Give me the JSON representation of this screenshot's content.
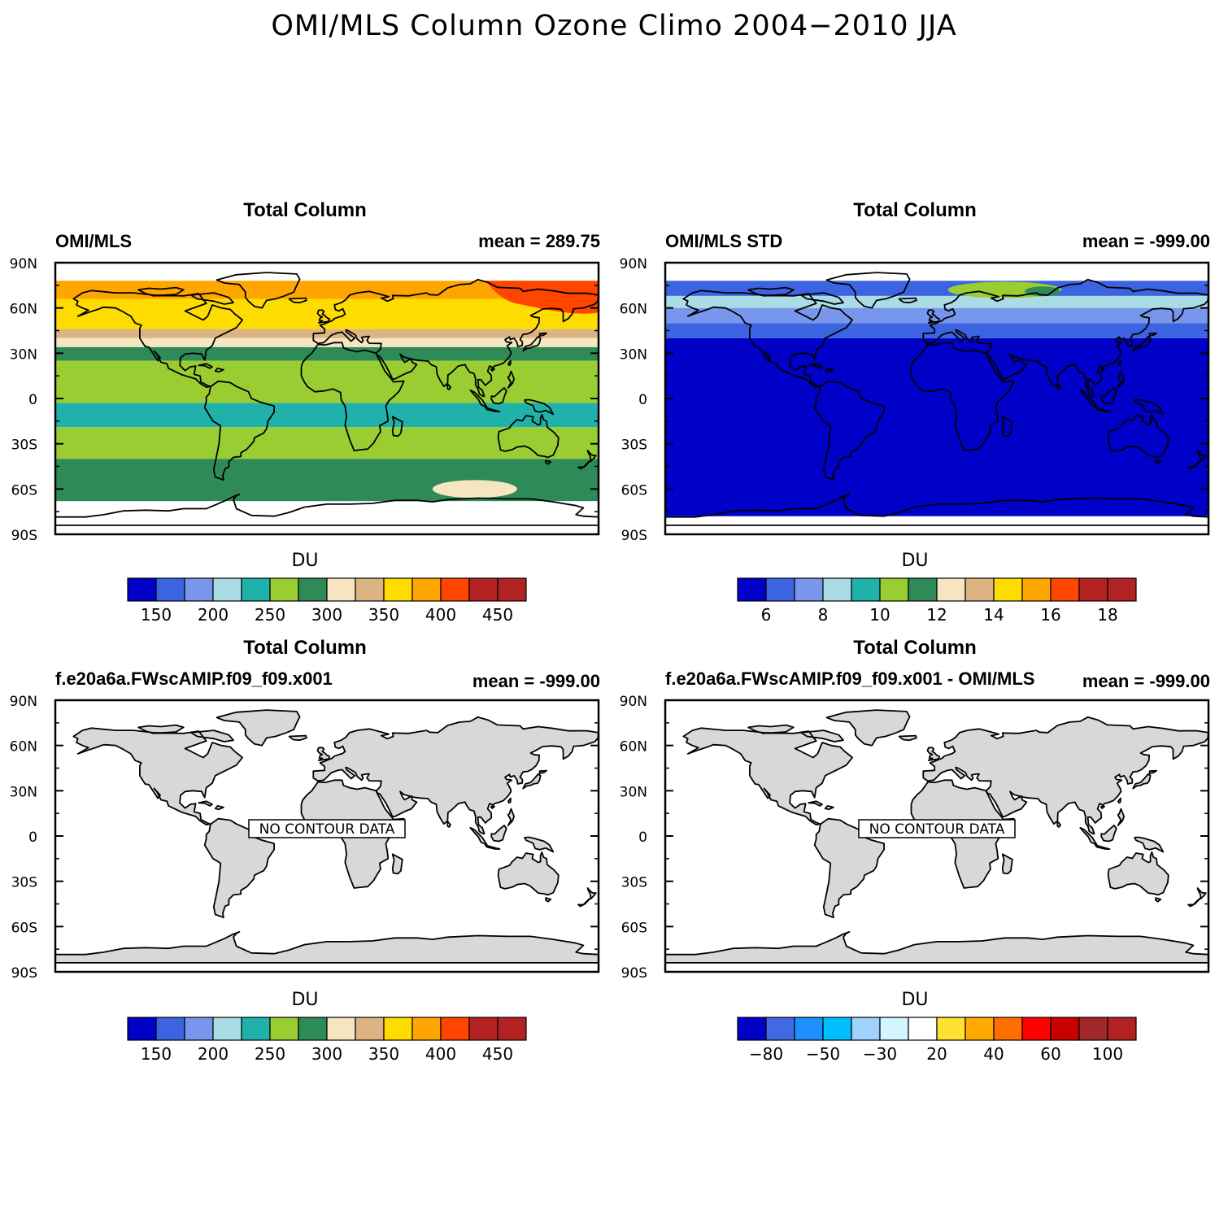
{
  "title": "OMI/MLS Column Ozone Climo 2004−2010 JJA",
  "lat_labels": [
    "90N",
    "60N",
    "30N",
    "0",
    "30S",
    "60S",
    "90S"
  ],
  "no_data_label": "NO CONTOUR DATA",
  "land_color": "#d8d8d8",
  "palette_du": [
    "#0000c8",
    "#3c64e1",
    "#7896eb",
    "#aadce6",
    "#20b2aa",
    "#9acd32",
    "#2e8b57",
    "#f5e6c1",
    "#dcb482",
    "#ffdc00",
    "#ffa500",
    "#ff4500",
    "#b22222",
    "#b22222"
  ],
  "palette_diff": [
    "#0000c8",
    "#4169e1",
    "#1e90ff",
    "#00bfff",
    "#a0d2ff",
    "#d2f5ff",
    "#ffffff",
    "#ffe132",
    "#ffaa00",
    "#ff6e00",
    "#ff0000",
    "#c80000",
    "#a02828",
    "#b22222"
  ],
  "panels": [
    {
      "title": "Total Column",
      "left": "OMI/MLS",
      "right": "mean = 289.75",
      "units": "DU",
      "colorbar_labels": [
        "150",
        "200",
        "250",
        "300",
        "350",
        "400",
        "450"
      ],
      "chart_data": {
        "type": "heatmap",
        "variable": "total column ozone",
        "units": "DU",
        "levels": [
          150,
          175,
          200,
          225,
          250,
          275,
          300,
          325,
          350,
          375,
          400,
          425,
          450
        ],
        "zonal_bands": [
          {
            "lat_range": [
              66,
              78
            ],
            "value_DU": 390
          },
          {
            "lat_range": [
              57,
              66
            ],
            "value_DU": 370
          },
          {
            "lat_range": [
              46,
              57
            ],
            "value_DU": 355
          },
          {
            "lat_range": [
              40,
              46
            ],
            "value_DU": 335
          },
          {
            "lat_range": [
              34,
              40
            ],
            "value_DU": 315
          },
          {
            "lat_range": [
              25,
              34
            ],
            "value_DU": 290
          },
          {
            "lat_range": [
              -3,
              25
            ],
            "value_DU": 265
          },
          {
            "lat_range": [
              -19,
              -3
            ],
            "value_DU": 245
          },
          {
            "lat_range": [
              -40,
              -19
            ],
            "value_DU": 265
          },
          {
            "lat_range": [
              -68,
              -40
            ],
            "value_DU": 290
          }
        ],
        "features": [
          {
            "region": "NE Asia / N Pacific",
            "value_DU": 415
          },
          {
            "region": "S Ocean ~60S",
            "value_DU": 310
          }
        ],
        "mean": 289.75,
        "data_lat_range": [
          -68,
          78
        ]
      }
    },
    {
      "title": "Total Column",
      "left": "OMI/MLS STD",
      "right": "mean = -999.00",
      "units": "DU",
      "colorbar_labels": [
        "6",
        "8",
        "10",
        "12",
        "14",
        "16",
        "18"
      ],
      "chart_data": {
        "type": "heatmap",
        "variable": "ozone standard deviation",
        "units": "DU",
        "levels": [
          6,
          7,
          8,
          9,
          10,
          11,
          12,
          13,
          14,
          15,
          16,
          17,
          18
        ],
        "zonal_bands": [
          {
            "lat_range": [
              -78,
              40
            ],
            "value_DU": 5.5
          },
          {
            "lat_range": [
              40,
              50
            ],
            "value_DU": 6.5
          },
          {
            "lat_range": [
              50,
              60
            ],
            "value_DU": 7.5
          },
          {
            "lat_range": [
              60,
              68
            ],
            "value_DU": 8.5
          },
          {
            "lat_range": [
              68,
              78
            ],
            "value_DU": 6.5
          }
        ],
        "features": [
          {
            "region": "Scandinavia / N Russia",
            "value_DU": 10.5
          },
          {
            "region": "W Siberia",
            "value_DU": 11.5
          }
        ],
        "mean": -999.0,
        "data_lat_range": [
          -78,
          78
        ]
      }
    },
    {
      "title": "Total Column",
      "left": "f.e20a6a.FWscAMIP.f09_f09.x001",
      "right": "mean = -999.00",
      "units": "DU",
      "colorbar_labels": [
        "150",
        "200",
        "250",
        "300",
        "350",
        "400",
        "450"
      ],
      "chart_data": {
        "type": "heatmap",
        "values": [],
        "note": "NO CONTOUR DATA",
        "mean": -999.0
      }
    },
    {
      "title": "Total Column",
      "left": "f.e20a6a.FWscAMIP.f09_f09.x001 - OMI/MLS",
      "right": "mean = -999.00",
      "units": "DU",
      "colorbar_labels": [
        "−80",
        "−50",
        "−30",
        "20",
        "40",
        "60",
        "100"
      ],
      "chart_data": {
        "type": "heatmap",
        "values": [],
        "note": "NO CONTOUR DATA",
        "mean": -999.0
      }
    }
  ]
}
